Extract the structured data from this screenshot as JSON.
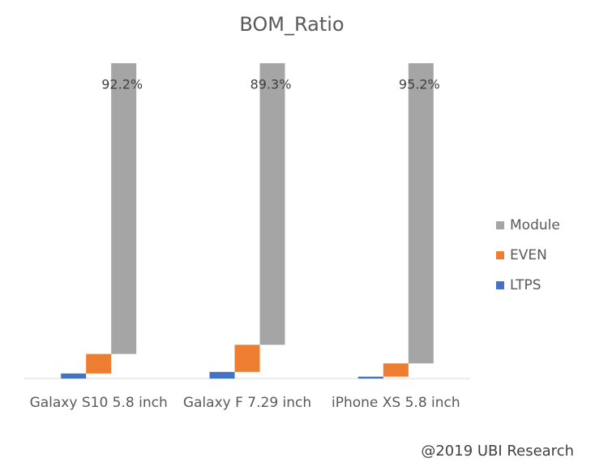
{
  "chart_data": {
    "type": "bar",
    "stacked": true,
    "title": "BOM_Ratio",
    "categories": [
      "Galaxy S10 5.8 inch",
      "Galaxy F 7.29 inch",
      "iPhone XS 5.8 inch"
    ],
    "series": [
      {
        "name": "LTPS",
        "color": "#4472c4",
        "values": [
          1.6,
          2.1,
          0.6
        ]
      },
      {
        "name": "EVEN",
        "color": "#ed7d31",
        "values": [
          6.2,
          8.6,
          4.2
        ]
      },
      {
        "name": "Module",
        "color": "#a5a5a5",
        "values": [
          92.2,
          89.3,
          95.2
        ],
        "value_labels": [
          "92.2%",
          "89.3%",
          "95.2%"
        ]
      }
    ],
    "ylim": [
      0,
      100
    ],
    "grid": false,
    "legend": "right",
    "annotation": "@2019 UBI Research"
  }
}
